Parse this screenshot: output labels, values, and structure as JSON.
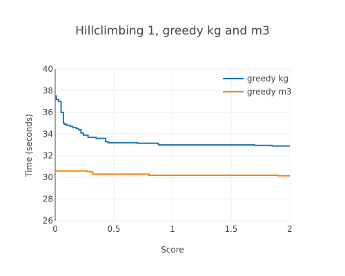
{
  "chart_data": {
    "type": "line",
    "title": "Hillclimbing 1, greedy kg and m3",
    "xlabel": "Score",
    "ylabel": "Time (seconds)",
    "xlim": [
      0,
      2
    ],
    "ylim": [
      26,
      40
    ],
    "xticks": [
      0,
      0.5,
      1,
      1.5,
      2
    ],
    "xtick_labels": [
      "0",
      "0.5",
      "1",
      "1.5",
      "2"
    ],
    "yticks": [
      26,
      28,
      30,
      32,
      34,
      36,
      38,
      40
    ],
    "ytick_labels": [
      "26",
      "28",
      "30",
      "32",
      "34",
      "36",
      "38",
      "40"
    ],
    "grid": true,
    "legend_position": "top-right",
    "series": [
      {
        "name": "greedy kg",
        "color": "#1f77b4",
        "line_shape": "step",
        "x": [
          0,
          0.01,
          0.03,
          0.05,
          0.07,
          0.08,
          0.1,
          0.13,
          0.15,
          0.18,
          0.2,
          0.22,
          0.24,
          0.28,
          0.3,
          0.35,
          0.43,
          0.45,
          0.5,
          0.7,
          0.88,
          1.0,
          1.25,
          1.5,
          1.7,
          1.85,
          2.0
        ],
        "y": [
          37.5,
          37.2,
          37.0,
          36.0,
          35.0,
          34.9,
          34.8,
          34.7,
          34.6,
          34.5,
          34.4,
          34.1,
          33.9,
          33.7,
          33.7,
          33.6,
          33.3,
          33.2,
          33.2,
          33.15,
          33.0,
          33.0,
          33.0,
          33.0,
          32.95,
          32.9,
          32.9
        ]
      },
      {
        "name": "greedy m3",
        "color": "#ff7f0e",
        "line_shape": "step",
        "x": [
          0,
          0.05,
          0.2,
          0.27,
          0.3,
          0.32,
          0.5,
          0.76,
          0.8,
          1.0,
          1.2,
          1.5,
          1.8,
          1.9,
          2.0
        ],
        "y": [
          30.6,
          30.6,
          30.6,
          30.55,
          30.5,
          30.3,
          30.3,
          30.3,
          30.2,
          30.2,
          30.2,
          30.2,
          30.2,
          30.15,
          30.15
        ]
      }
    ]
  }
}
